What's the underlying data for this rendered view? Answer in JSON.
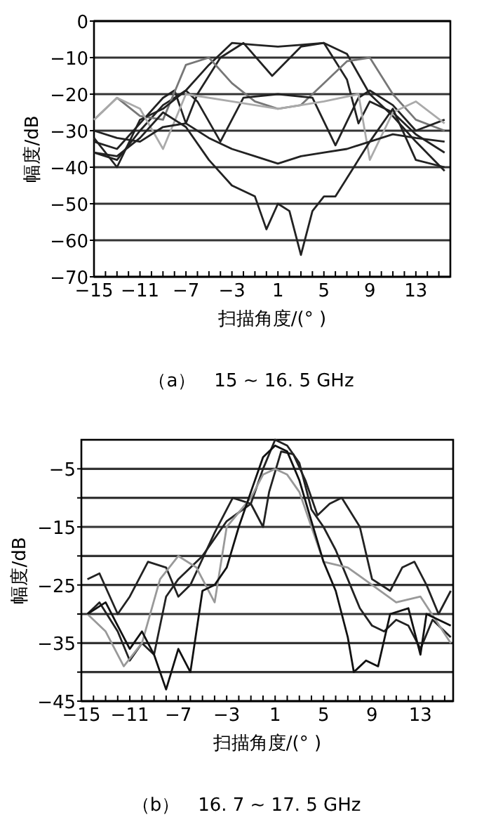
{
  "chart_data": [
    {
      "type": "line",
      "title": "（a）　15 ~ 16. 5 GHz",
      "xlabel": "扫描角度/(°  )",
      "ylabel": "幅度/dB",
      "xlim": [
        -15,
        16
      ],
      "ylim": [
        -70,
        0
      ],
      "xticks": [
        -15,
        {
          "value": -14,
          "label": null
        },
        {
          "value": -13,
          "label": null
        },
        {
          "value": -12,
          "label": null
        },
        -11,
        {
          "value": -10,
          "label": null
        },
        {
          "value": -9,
          "label": null
        },
        {
          "value": -8,
          "label": null
        },
        -7,
        {
          "value": -6,
          "label": null
        },
        {
          "value": -5,
          "label": null
        },
        {
          "value": -4,
          "label": null
        },
        -3,
        {
          "value": -2,
          "label": null
        },
        {
          "value": -1,
          "label": null
        },
        {
          "value": 0,
          "label": null
        },
        1,
        {
          "value": 2,
          "label": null
        },
        {
          "value": 3,
          "label": null
        },
        {
          "value": 4,
          "label": null
        },
        5,
        {
          "value": 6,
          "label": null
        },
        {
          "value": 7,
          "label": null
        },
        {
          "value": 8,
          "label": null
        },
        9,
        {
          "value": 10,
          "label": null
        },
        {
          "value": 11,
          "label": null
        },
        {
          "value": 12,
          "label": null
        },
        13,
        {
          "value": 14,
          "label": null
        },
        {
          "value": 15,
          "label": null
        }
      ],
      "yticks": [
        -70,
        -60,
        -50,
        -40,
        -30,
        -20,
        -10,
        0
      ],
      "grid": "y",
      "series": [
        {
          "color": "#222222",
          "x": [
            -15,
            -13,
            -11,
            -9,
            -7,
            -5,
            -3,
            -1,
            1,
            3,
            5,
            7,
            9,
            11,
            13,
            15.5
          ],
          "values": [
            -36,
            -38,
            -30,
            -23,
            -19,
            -12,
            -6,
            -6.5,
            -7,
            -6.5,
            -6,
            -9,
            -20,
            -26,
            -33,
            -41
          ]
        },
        {
          "color": "#222222",
          "x": [
            -15,
            -13,
            -11,
            -9,
            -8,
            -7,
            -6,
            -4,
            -2,
            0.5,
            3,
            5,
            7,
            8,
            9,
            11,
            13,
            15.5
          ],
          "values": [
            -33,
            -35,
            -28,
            -21,
            -19,
            -28,
            -20,
            -10,
            -6,
            -15,
            -7,
            -6,
            -16,
            -28,
            -22,
            -25,
            -31,
            -36
          ]
        },
        {
          "color": "#777777",
          "x": [
            -15,
            -13,
            -11,
            -9,
            -7,
            -5,
            -3,
            -1,
            1,
            3,
            5,
            7,
            9,
            11,
            13,
            15.5
          ],
          "values": [
            -27,
            -21,
            -26,
            -27,
            -12,
            -10,
            -17,
            -22,
            -24,
            -23,
            -17,
            -11,
            -10,
            -20,
            -27,
            -30
          ]
        },
        {
          "color": "#222222",
          "x": [
            -15,
            -13,
            -11,
            -9,
            -7,
            -6,
            -4,
            -2,
            1,
            4,
            6,
            8,
            9,
            11,
            13,
            15.5
          ],
          "values": [
            -32,
            -40,
            -27,
            -24,
            -19,
            -22,
            -33,
            -21,
            -20,
            -21,
            -34,
            -21,
            -19,
            -23,
            -30,
            -27
          ]
        },
        {
          "color": "#aaaaaa",
          "x": [
            -15,
            -13,
            -11,
            -9,
            -7,
            -3,
            1,
            5,
            8,
            9,
            11,
            13,
            15.5
          ],
          "values": [
            -27,
            -21,
            -24,
            -35,
            -20,
            -22,
            -24,
            -22,
            -20,
            -38,
            -25,
            -22,
            -28
          ]
        },
        {
          "color": "#222222",
          "x": [
            -15,
            -13,
            -11,
            -9,
            -7,
            -5,
            -3,
            -1,
            1,
            3,
            5,
            7,
            9,
            11,
            13,
            15.5
          ],
          "values": [
            -30,
            -32,
            -33,
            -29,
            -28,
            -32,
            -35,
            -37,
            -39,
            -37,
            -36,
            -35,
            -33,
            -31,
            -32,
            -33
          ]
        },
        {
          "color": "#222222",
          "x": [
            -15,
            -13,
            -11,
            -9,
            -7,
            -5,
            -3,
            -1,
            0,
            1,
            2,
            3,
            4,
            5,
            6,
            7,
            9,
            11,
            13,
            15.5
          ],
          "values": [
            -36,
            -37,
            -32,
            -25,
            -29,
            -38,
            -45,
            -48,
            -57,
            -50,
            -52,
            -64,
            -52,
            -48,
            -48,
            -43,
            -33,
            -24,
            -38,
            -40
          ]
        }
      ]
    },
    {
      "type": "line",
      "title": "（b）　16. 7 ~ 17. 5 GHz",
      "xlabel": "扫描角度/(°  )",
      "ylabel": "幅度/dB",
      "xlim": [
        -15,
        15.7
      ],
      "ylim": [
        -45,
        0
      ],
      "xticks": [
        -15,
        {
          "value": -14,
          "label": null
        },
        {
          "value": -13,
          "label": null
        },
        {
          "value": -12,
          "label": null
        },
        -11,
        {
          "value": -10,
          "label": null
        },
        {
          "value": -9,
          "label": null
        },
        {
          "value": -8,
          "label": null
        },
        -7,
        {
          "value": -6,
          "label": null
        },
        {
          "value": -5,
          "label": null
        },
        {
          "value": -4,
          "label": null
        },
        -3,
        {
          "value": -2,
          "label": null
        },
        {
          "value": -1,
          "label": null
        },
        {
          "value": 0,
          "label": null
        },
        1,
        {
          "value": 2,
          "label": null
        },
        {
          "value": 3,
          "label": null
        },
        {
          "value": 4,
          "label": null
        },
        5,
        {
          "value": 6,
          "label": null
        },
        {
          "value": 7,
          "label": null
        },
        {
          "value": 8,
          "label": null
        },
        9,
        {
          "value": 10,
          "label": null
        },
        {
          "value": 11,
          "label": null
        },
        {
          "value": 12,
          "label": null
        },
        13,
        {
          "value": 14,
          "label": null
        },
        {
          "value": 15,
          "label": null
        }
      ],
      "yticks": [
        -45,
        {
          "value": -40,
          "label": null
        },
        -35,
        {
          "value": -30,
          "label": null
        },
        -25,
        {
          "value": -20,
          "label": null
        },
        -15,
        {
          "value": -10,
          "label": null
        },
        -5
      ],
      "grid": "y",
      "series": [
        {
          "color": "#222222",
          "x": [
            -14.5,
            -13.5,
            -12,
            -11,
            -9.5,
            -8,
            -7,
            -6,
            -4,
            -2.5,
            -1,
            0,
            0.5,
            1.5,
            2.5,
            3.5,
            4.5,
            5.5,
            6.5,
            8,
            9,
            10.5,
            11.5,
            12.5,
            13.5,
            14.5,
            15.5
          ],
          "values": [
            -24,
            -23,
            -30,
            -27,
            -21,
            -22,
            -27,
            -25,
            -16,
            -10,
            -11,
            -15,
            -9,
            -2,
            -2.5,
            -7,
            -13,
            -11,
            -10,
            -15,
            -24,
            -26,
            -22,
            -21,
            -25,
            -30,
            -26
          ]
        },
        {
          "color": "#222222",
          "x": [
            -14.5,
            -13.5,
            -12,
            -11,
            -10,
            -9,
            -8,
            -7,
            -5,
            -3,
            -1,
            0,
            1,
            2,
            3,
            4,
            5,
            6,
            7,
            8,
            9,
            10,
            11,
            12,
            13,
            14,
            15.5
          ],
          "values": [
            -30,
            -28,
            -33,
            -38,
            -35,
            -37,
            -27,
            -24,
            -20,
            -14,
            -11,
            -5,
            0,
            -1,
            -4,
            -12,
            -15,
            -19,
            -24,
            -29,
            -32,
            -33,
            -31,
            -32,
            -36,
            -31,
            -34
          ]
        },
        {
          "color": "#999999",
          "x": [
            -14.5,
            -13,
            -11.5,
            -10,
            -8.5,
            -7,
            -5.5,
            -4,
            -3,
            -1,
            0,
            1,
            2,
            3,
            4,
            5,
            7,
            9,
            11,
            13,
            15.5
          ],
          "values": [
            -30,
            -33,
            -39,
            -35,
            -24,
            -20,
            -22,
            -28,
            -15,
            -10,
            -6,
            -5,
            -6,
            -9,
            -15,
            -21,
            -22,
            -25,
            -28,
            -27,
            -35
          ]
        },
        {
          "color": "#111111",
          "x": [
            -14.5,
            -13,
            -12,
            -11,
            -10,
            -9,
            -8,
            -7,
            -6,
            -5,
            -4,
            -3,
            -2,
            -1,
            0,
            1,
            2,
            3,
            4,
            5,
            6,
            7,
            7.5,
            8.5,
            9.5,
            10.5,
            12,
            13,
            13.5,
            15.5
          ],
          "values": [
            -30,
            -28,
            -32,
            -36,
            -33,
            -37,
            -43,
            -36,
            -40,
            -26,
            -25,
            -22,
            -15,
            -9,
            -3,
            -1,
            -2,
            -7,
            -14,
            -21,
            -26,
            -34,
            -40,
            -38,
            -39,
            -30,
            -29,
            -37,
            -30,
            -32
          ]
        }
      ]
    }
  ]
}
